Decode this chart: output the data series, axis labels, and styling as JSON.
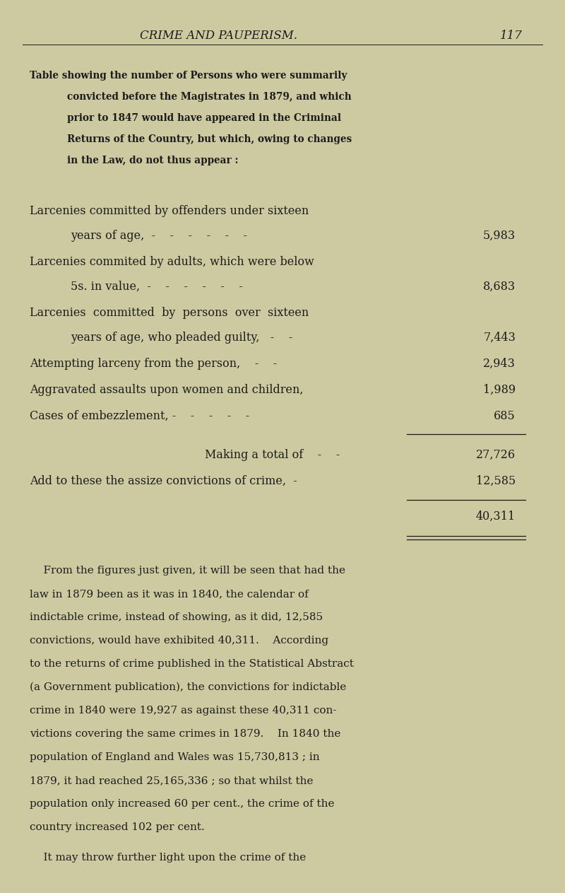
{
  "bg_color": "#cdc9a0",
  "text_color": "#1c1c1c",
  "page_width": 8.0,
  "page_height": 12.63,
  "dpi": 100,
  "header_title": "CRIME AND PAUPERISM.",
  "header_page": "117",
  "intro_line1": "Table showing the number of Persons who were summarily",
  "intro_line2": "convicted before the Magistrates in 1879, and which",
  "intro_line3": "prior to 1847 would have appeared in the Criminal",
  "intro_line4": "Returns of the Country, but which, owing to changes",
  "intro_line5": "in the Law, do not thus appear :",
  "row1a": "Larcenies committed by offenders under sixteen",
  "row1b": "years of age,  -    -    -    -    -    -",
  "row1v": "5,983",
  "row2a": "Larcenies commited by adults, which were below",
  "row2b": "5s. in value,  -    -    -    -    -    -",
  "row2v": "8,683",
  "row3a": "Larcenies  committed  by  persons  over  sixteen",
  "row3b": "years of age, who pleaded guilty,   -    -",
  "row3v": "7,443",
  "row4a": "Attempting larceny from the person,    -    -",
  "row4v": "2,943",
  "row5a": "Aggravated assaults upon women and children,",
  "row5v": "1,989",
  "row6a": "Cases of embezzlement, -    -    -    -    -",
  "row6v": "685",
  "subtotal_label": "Making a total of    -    -",
  "subtotal_value": "27,726",
  "assize_label": "Add to these the assize convictions of crime,  -",
  "assize_value": "12,585",
  "total_value": "40,311",
  "body_line1": "    From the figures just given, it will be seen that had the",
  "body_line2": "law in 1879 been as it was in 1840, the calendar of",
  "body_line3": "indictable crime, instead of showing, as it did, 12,585",
  "body_line4": "convictions, would have exhibited 40,311.    According",
  "body_line5": "to the returns of crime published in the Statistical Abstract",
  "body_line6": "(a Government publication), the convictions for indictable",
  "body_line7": "crime in 1840 were 19,927 as against these 40,311 con-",
  "body_line8": "victions covering the same crimes in 1879.    In 1840 the",
  "body_line9": "population of England and Wales was 15,730,813 ; in",
  "body_line10": "1879, it had reached 25,165,336 ; so that whilst the",
  "body_line11": "population only increased 60 per cent., the crime of the",
  "body_line12": "country increased 102 per cent.",
  "body_line13": "    It may throw further light upon the crime of the"
}
